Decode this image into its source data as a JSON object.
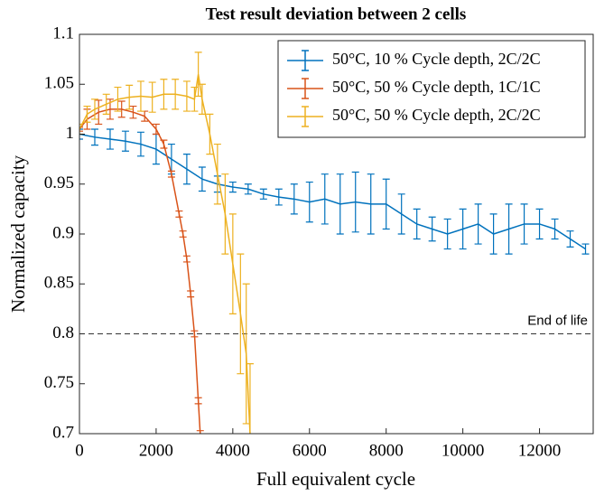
{
  "chart_data": {
    "type": "line",
    "title": "Test result deviation between 2 cells",
    "xlabel": "Full equivalent cycle",
    "ylabel": "Normalized capacity",
    "xlim": [
      0,
      13400
    ],
    "ylim": [
      0.7,
      1.1
    ],
    "xticks": [
      0,
      2000,
      4000,
      6000,
      8000,
      10000,
      12000
    ],
    "yticks": [
      0.7,
      0.75,
      0.8,
      0.85,
      0.9,
      0.95,
      1,
      1.05,
      1.1
    ],
    "legend": "upper right",
    "reference_line": {
      "value": 0.8,
      "label": "End of life"
    },
    "series": [
      {
        "name": "50°C, 10 % Cycle depth, 2C/2C",
        "color": "#0072bd",
        "x": [
          0,
          400,
          800,
          1200,
          1600,
          2000,
          2400,
          2800,
          3200,
          3600,
          4000,
          4400,
          4800,
          5200,
          5600,
          6000,
          6400,
          6800,
          7200,
          7600,
          8000,
          8400,
          8800,
          9200,
          9600,
          10000,
          10400,
          10800,
          11200,
          11600,
          12000,
          12400,
          12800,
          13200
        ],
        "values": [
          1.0,
          0.997,
          0.995,
          0.993,
          0.99,
          0.985,
          0.975,
          0.965,
          0.955,
          0.95,
          0.947,
          0.945,
          0.94,
          0.937,
          0.935,
          0.932,
          0.935,
          0.93,
          0.932,
          0.93,
          0.93,
          0.92,
          0.91,
          0.905,
          0.9,
          0.905,
          0.91,
          0.9,
          0.905,
          0.91,
          0.91,
          0.905,
          0.895,
          0.885
        ],
        "errors": [
          0.005,
          0.008,
          0.01,
          0.01,
          0.012,
          0.015,
          0.015,
          0.015,
          0.012,
          0.008,
          0.005,
          0.005,
          0.005,
          0.008,
          0.015,
          0.02,
          0.025,
          0.03,
          0.03,
          0.03,
          0.025,
          0.02,
          0.015,
          0.012,
          0.015,
          0.02,
          0.02,
          0.02,
          0.025,
          0.02,
          0.015,
          0.01,
          0.008,
          0.005
        ]
      },
      {
        "name": "50°C, 50 % Cycle depth, 1C/1C",
        "color": "#d95319",
        "x": [
          0,
          200,
          500,
          800,
          1100,
          1400,
          1700,
          2000,
          2200,
          2400,
          2600,
          2700,
          2800,
          2900,
          3000,
          3100,
          3150
        ],
        "values": [
          1.005,
          1.015,
          1.022,
          1.025,
          1.025,
          1.022,
          1.018,
          1.005,
          0.99,
          0.96,
          0.92,
          0.9,
          0.875,
          0.84,
          0.8,
          0.733,
          0.7
        ],
        "errors": [
          0.002,
          0.01,
          0.012,
          0.01,
          0.008,
          0.006,
          0.005,
          0.005,
          0.004,
          0.003,
          0.003,
          0.003,
          0.003,
          0.003,
          0.003,
          0.003,
          0.003
        ]
      },
      {
        "name": "50°C, 50 % Cycle depth, 2C/2C",
        "color": "#edb120",
        "x": [
          0,
          200,
          400,
          700,
          1000,
          1300,
          1600,
          1900,
          2200,
          2500,
          2800,
          3000,
          3100,
          3200,
          3400,
          3600,
          3800,
          4000,
          4200,
          4350,
          4450
        ],
        "values": [
          1.005,
          1.02,
          1.025,
          1.03,
          1.035,
          1.037,
          1.038,
          1.037,
          1.04,
          1.04,
          1.038,
          1.035,
          1.06,
          1.035,
          1.0,
          0.96,
          0.92,
          0.87,
          0.82,
          0.78,
          0.7
        ],
        "errors": [
          0.005,
          0.008,
          0.01,
          0.01,
          0.012,
          0.012,
          0.015,
          0.015,
          0.015,
          0.015,
          0.015,
          0.012,
          0.022,
          0.015,
          0.02,
          0.03,
          0.04,
          0.05,
          0.06,
          0.07,
          0.07
        ]
      }
    ]
  }
}
